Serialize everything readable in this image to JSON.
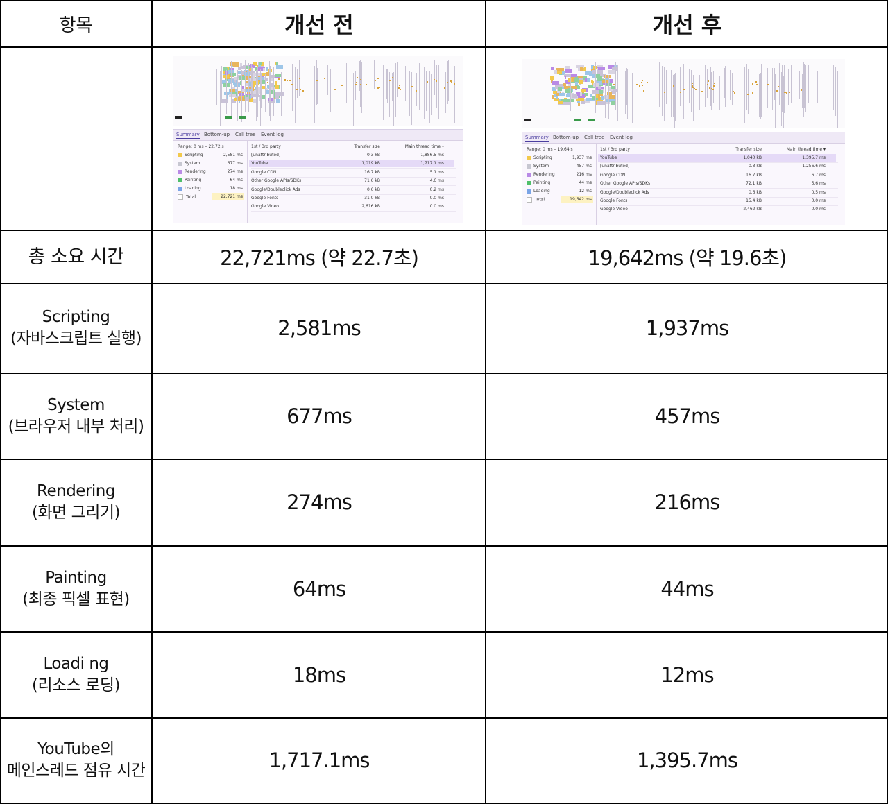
{
  "header": {
    "col1": "항목",
    "col2": "개선 전",
    "col3": "개선 후"
  },
  "rows": [
    {
      "label": [
        "총 소요 시간"
      ],
      "before": "22,721ms (약 22.7초)",
      "after": "19,642ms (약 19.6초)"
    },
    {
      "label": [
        "Scripting",
        "(자바스크립트 실행)"
      ],
      "before": "2,581ms",
      "after": "1,937ms"
    },
    {
      "label": [
        "System",
        "(브라우저 내부 처리)"
      ],
      "before": "677ms",
      "after": "457ms"
    },
    {
      "label": [
        "Rendering",
        "(화면 그리기)"
      ],
      "before": "274ms",
      "after": "216ms"
    },
    {
      "label": [
        "Painting",
        "(최종 픽셀 표현)"
      ],
      "before": "64ms",
      "after": "44ms"
    },
    {
      "label": [
        "Loadi ng",
        "(리소스 로딩)"
      ],
      "before": "18ms",
      "after": "12ms"
    },
    {
      "label": [
        "YouTube의",
        "메인스레드 점유 시간"
      ],
      "before": "1,717.1ms",
      "after": "1,395.7ms"
    }
  ],
  "screenshots": {
    "tabs": [
      "Summary",
      "Bottom-up",
      "Call tree",
      "Event log"
    ],
    "col_first_party": "1st / 3rd party",
    "col_transfer": "Transfer size",
    "col_main": "Main thread time ▾",
    "category_colors": {
      "Scripting": "#f2c94c",
      "System": "#c7c7d1",
      "Rendering": "#b98ae6",
      "Painting": "#4fbf6a",
      "Loading": "#7aa4e6",
      "Total": "#ffffff"
    },
    "before": {
      "range": "Range: 0 ms – 22.72 s",
      "categories": [
        {
          "name": "Scripting",
          "ms": "2,581 ms"
        },
        {
          "name": "System",
          "ms": "677 ms"
        },
        {
          "name": "Rendering",
          "ms": "274 ms"
        },
        {
          "name": "Painting",
          "ms": "64 ms"
        },
        {
          "name": "Loading",
          "ms": "18 ms"
        },
        {
          "name": "Total",
          "ms": "22,721 ms"
        }
      ],
      "table": [
        {
          "party": "[unattributed]",
          "size": "0.3 kB",
          "time": "1,886.5 ms"
        },
        {
          "party": "YouTube",
          "size": "1,019 kB",
          "time": "1,717.1 ms"
        },
        {
          "party": "Google CDN",
          "size": "16.7 kB",
          "time": "5.1 ms"
        },
        {
          "party": "Other Google APIs/SDKs",
          "size": "71.6 kB",
          "time": "4.6 ms"
        },
        {
          "party": "Google/Doubleclick Ads",
          "size": "0.6 kB",
          "time": "0.2 ms"
        },
        {
          "party": "Google Fonts",
          "size": "31.0 kB",
          "time": "0.0 ms"
        },
        {
          "party": "Google Video",
          "size": "2,616 kB",
          "time": "0.0 ms"
        }
      ]
    },
    "after": {
      "range": "Range: 0 ms – 19.64 s",
      "categories": [
        {
          "name": "Scripting",
          "ms": "1,937 ms"
        },
        {
          "name": "System",
          "ms": "457 ms"
        },
        {
          "name": "Rendering",
          "ms": "216 ms"
        },
        {
          "name": "Painting",
          "ms": "44 ms"
        },
        {
          "name": "Loading",
          "ms": "12 ms"
        },
        {
          "name": "Total",
          "ms": "19,642 ms"
        }
      ],
      "table": [
        {
          "party": "YouTube",
          "size": "1,040 kB",
          "time": "1,395.7 ms"
        },
        {
          "party": "[unattributed]",
          "size": "0.3 kB",
          "time": "1,256.6 ms"
        },
        {
          "party": "Google CDN",
          "size": "16.7 kB",
          "time": "6.7 ms"
        },
        {
          "party": "Other Google APIs/SDKs",
          "size": "72.1 kB",
          "time": "5.6 ms"
        },
        {
          "party": "Google/Doubleclick Ads",
          "size": "0.6 kB",
          "time": "0.5 ms"
        },
        {
          "party": "Google Fonts",
          "size": "15.4 kB",
          "time": "0.0 ms"
        },
        {
          "party": "Google Video",
          "size": "2,462 kB",
          "time": "0.0 ms"
        }
      ]
    }
  }
}
